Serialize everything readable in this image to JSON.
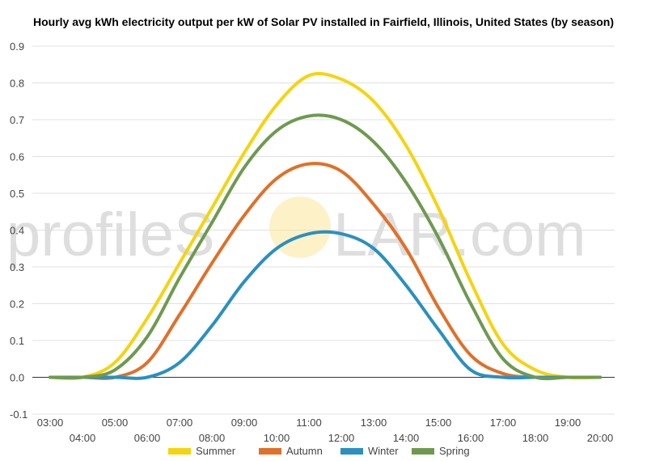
{
  "watermark": {
    "left": "profileS",
    "right": "LAR.com"
  },
  "chart_data": {
    "type": "line",
    "title": "Hourly avg kWh electricity output per kW of Solar PV installed in Fairfield, Illinois, United States (by season)",
    "xlabel": "",
    "ylabel": "",
    "ylim": [
      -0.1,
      0.9
    ],
    "yticks": [
      "-0.1",
      "0.0",
      "0.1",
      "0.2",
      "0.3",
      "0.4",
      "0.5",
      "0.6",
      "0.7",
      "0.8",
      "0.9"
    ],
    "categories": [
      "03:00",
      "04:00",
      "05:00",
      "06:00",
      "07:00",
      "08:00",
      "09:00",
      "10:00",
      "11:00",
      "12:00",
      "13:00",
      "14:00",
      "15:00",
      "16:00",
      "17:00",
      "18:00",
      "19:00",
      "20:00"
    ],
    "grid": true,
    "legend_position": "bottom",
    "series": [
      {
        "name": "Summer",
        "color": "#f5d40f",
        "values": [
          0.0,
          0.0,
          0.04,
          0.16,
          0.31,
          0.46,
          0.61,
          0.74,
          0.82,
          0.81,
          0.75,
          0.63,
          0.46,
          0.26,
          0.09,
          0.02,
          0.0,
          0.0
        ]
      },
      {
        "name": "Autumn",
        "color": "#e07028",
        "values": [
          0.0,
          0.0,
          0.0,
          0.04,
          0.17,
          0.31,
          0.44,
          0.54,
          0.58,
          0.56,
          0.47,
          0.35,
          0.19,
          0.06,
          0.01,
          0.0,
          0.0,
          0.0
        ]
      },
      {
        "name": "Winter",
        "color": "#2a90c0",
        "values": [
          0.0,
          0.0,
          0.0,
          0.0,
          0.04,
          0.14,
          0.26,
          0.35,
          0.39,
          0.39,
          0.35,
          0.25,
          0.13,
          0.02,
          0.0,
          0.0,
          0.0,
          0.0
        ]
      },
      {
        "name": "Spring",
        "color": "#6e9a50",
        "values": [
          0.0,
          0.0,
          0.02,
          0.11,
          0.27,
          0.42,
          0.57,
          0.67,
          0.71,
          0.7,
          0.64,
          0.53,
          0.38,
          0.2,
          0.05,
          0.0,
          0.0,
          0.0
        ]
      }
    ]
  }
}
